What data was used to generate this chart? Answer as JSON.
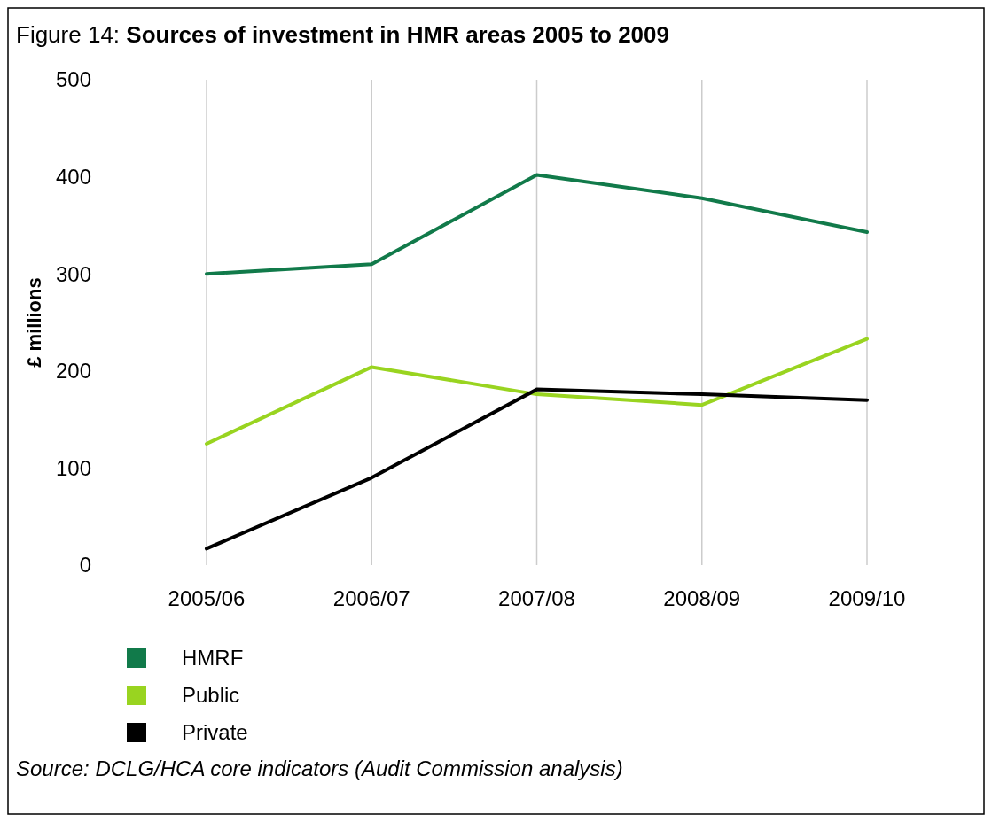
{
  "chart_data": {
    "type": "line",
    "title": "Figure 14: Sources of investment in HMR areas 2005 to 2009",
    "ylabel": "£ millions",
    "categories": [
      "2005/06",
      "2006/07",
      "2007/08",
      "2008/09",
      "2009/10"
    ],
    "series": [
      {
        "name": "HMRF",
        "color": "#117a4a",
        "values": [
          300,
          310,
          402,
          378,
          343
        ]
      },
      {
        "name": "Public",
        "color": "#99d420",
        "values": [
          125,
          204,
          176,
          165,
          233
        ]
      },
      {
        "name": "Private",
        "color": "#000000",
        "values": [
          17,
          90,
          181,
          176,
          170
        ]
      }
    ],
    "ylim": [
      0,
      500
    ],
    "yticks": [
      0,
      100,
      200,
      300,
      400,
      500
    ],
    "grid": "x",
    "legend": "bottom left",
    "annotations": [
      "Source: DCLG/HCA core indicators (Audit Commission analysis)"
    ]
  }
}
